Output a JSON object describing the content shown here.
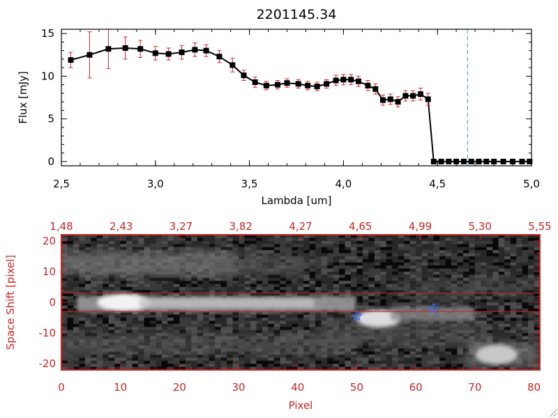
{
  "colors": {
    "black": "#000000",
    "red": "#cc2222",
    "errorbar": "#dd2222",
    "cyan": "#2a9fd0",
    "star": "#3366ff"
  },
  "chart_data": [
    {
      "type": "line",
      "title": "2201145.34",
      "xlabel": "Lambda [um]",
      "ylabel": "Flux [mJy]",
      "xlim": [
        2.5,
        5.0
      ],
      "ylim": [
        -0.5,
        15.5
      ],
      "xticks": [
        "2.5",
        "3.0",
        "3.5",
        "4.0",
        "4.5",
        "5.0"
      ],
      "yticks": [
        "0",
        "5",
        "10",
        "15"
      ],
      "cutoff_line_x": 4.66,
      "series": [
        {
          "name": "flux",
          "x": [
            2.55,
            2.65,
            2.75,
            2.84,
            2.92,
            3.0,
            3.07,
            3.14,
            3.21,
            3.27,
            3.34,
            3.41,
            3.47,
            3.53,
            3.59,
            3.65,
            3.7,
            3.76,
            3.81,
            3.86,
            3.91,
            3.96,
            4.0,
            4.04,
            4.08,
            4.13,
            4.17,
            4.21,
            4.25,
            4.29,
            4.33,
            4.37,
            4.41,
            4.45,
            4.48,
            4.52,
            4.56,
            4.6,
            4.64,
            4.68,
            4.72,
            4.76,
            4.8,
            4.85,
            4.9,
            4.95,
            4.99
          ],
          "y": [
            11.9,
            12.5,
            13.2,
            13.3,
            13.2,
            12.7,
            12.6,
            12.8,
            13.1,
            13.0,
            12.3,
            11.3,
            10.1,
            9.3,
            8.9,
            9.0,
            9.2,
            9.1,
            8.9,
            8.8,
            9.1,
            9.5,
            9.6,
            9.6,
            9.4,
            8.9,
            8.5,
            7.2,
            7.3,
            7.0,
            7.7,
            7.7,
            7.9,
            7.3,
            0,
            0,
            0,
            0,
            0,
            0,
            0,
            0,
            0,
            0,
            0,
            0,
            0
          ],
          "err": [
            0.9,
            2.7,
            2.3,
            1.3,
            1.0,
            0.8,
            0.7,
            0.8,
            0.8,
            0.7,
            0.7,
            0.8,
            0.6,
            0.6,
            0.5,
            0.5,
            0.5,
            0.5,
            0.5,
            0.5,
            0.5,
            0.6,
            0.6,
            0.6,
            0.6,
            0.6,
            0.6,
            0.6,
            0.6,
            0.6,
            0.6,
            0.6,
            0.7,
            0.7,
            0,
            0,
            0,
            0,
            0,
            0,
            0,
            0,
            0,
            0,
            0,
            0,
            0
          ]
        }
      ]
    },
    {
      "type": "heatmap",
      "xlabel": "Pixel",
      "ylabel": "Space Shift [pixel]",
      "xlim": [
        0,
        81
      ],
      "ylim": [
        -22,
        22
      ],
      "xticks": [
        "0",
        "10",
        "20",
        "30",
        "40",
        "50",
        "60",
        "70",
        "80"
      ],
      "yticks": [
        "20",
        "10",
        "0",
        "-10",
        "-20"
      ],
      "top_ticks": [
        "1.48",
        "2.43",
        "3.27",
        "3.82",
        "4.27",
        "4.65",
        "4.99",
        "5.30",
        "5.55"
      ],
      "extraction_band": [
        -3,
        3
      ],
      "markers": [
        {
          "x": 50,
          "y": -4.5
        },
        {
          "x": 63,
          "y": -2.0
        }
      ]
    }
  ]
}
